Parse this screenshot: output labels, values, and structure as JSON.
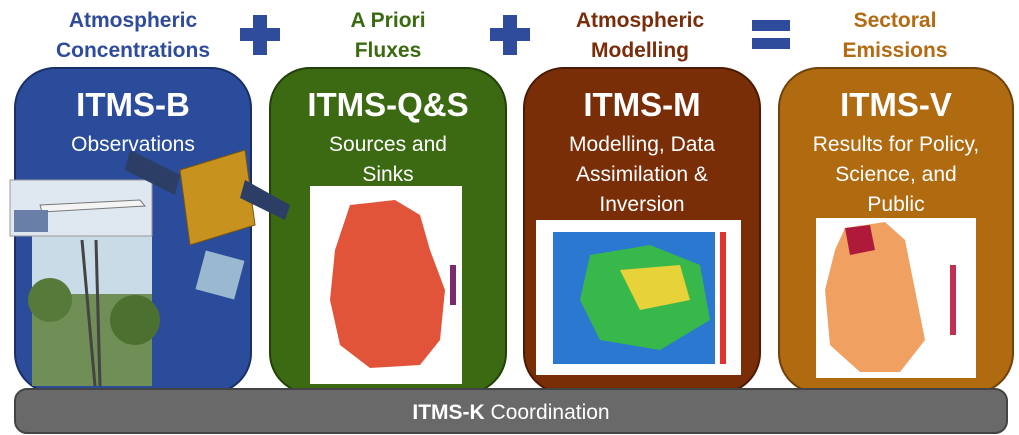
{
  "headers": [
    {
      "lines": [
        "Atmospheric",
        "Concentrations"
      ]
    },
    {
      "lines": [
        "A Priori",
        "Fluxes"
      ]
    },
    {
      "lines": [
        "Atmospheric",
        "Modelling"
      ]
    },
    {
      "lines": [
        "Sectoral",
        "Emissions"
      ]
    }
  ],
  "boxes": [
    {
      "title": "ITMS-B",
      "lines": [
        "Observations"
      ]
    },
    {
      "title": "ITMS-Q&S",
      "lines": [
        "Sources and",
        "Sinks"
      ]
    },
    {
      "title": "ITMS-M",
      "lines": [
        "Modelling, Data",
        "Assimilation &",
        "Inversion"
      ]
    },
    {
      "title": "ITMS-V",
      "lines": [
        "Results for Policy,",
        "Science, and",
        "Public"
      ]
    }
  ],
  "footer": {
    "bold": "ITMS-K",
    "text": "Coordination"
  }
}
